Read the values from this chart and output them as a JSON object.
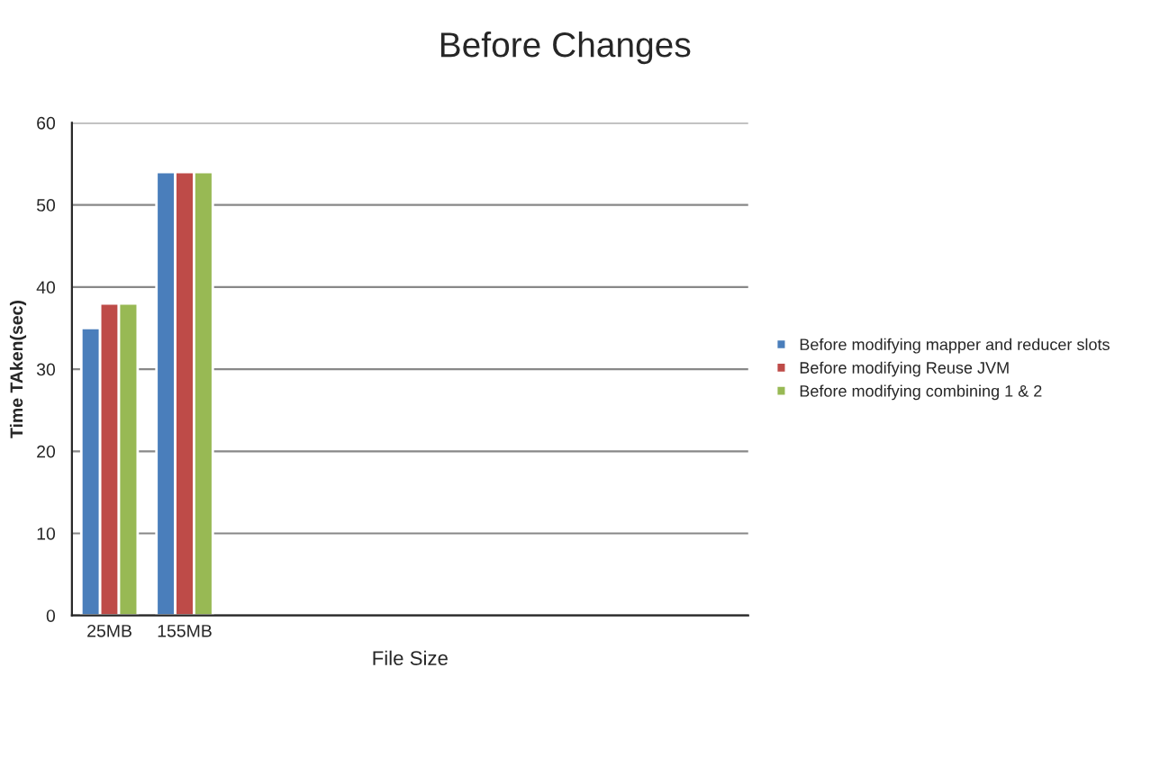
{
  "chart_data": {
    "type": "bar",
    "title": "Before Changes",
    "xlabel": "File Size",
    "ylabel": "Time TAken(sec)",
    "categories": [
      "25MB",
      "155MB",
      null,
      null,
      null,
      null,
      null,
      null,
      null
    ],
    "series": [
      {
        "name": "Before modifying mapper and reducer slots",
        "color": "#4a7ebb",
        "values": [
          35,
          54,
          null,
          null,
          null,
          null,
          null,
          null,
          null
        ]
      },
      {
        "name": "Before modifying Reuse JVM",
        "color": "#be4b48",
        "values": [
          38,
          54,
          null,
          null,
          null,
          null,
          null,
          null,
          null
        ]
      },
      {
        "name": "Before modifying combining 1 & 2",
        "color": "#98b954",
        "values": [
          38,
          54,
          null,
          null,
          null,
          null,
          null,
          null,
          null
        ]
      }
    ],
    "ylim": [
      0,
      60
    ],
    "yticks": [
      0,
      10,
      20,
      30,
      40,
      50,
      60
    ],
    "grid": "y",
    "legend": "right"
  }
}
